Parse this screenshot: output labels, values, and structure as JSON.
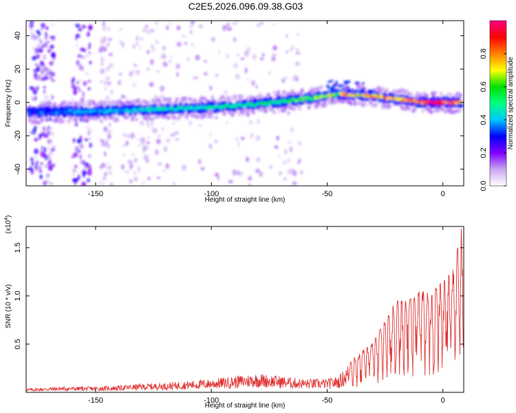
{
  "title": "C2E5.2026.096.09.38.G03",
  "chart_data": [
    {
      "type": "heatmap",
      "name": "spectrogram",
      "xlabel": "Height of straight line (km)",
      "ylabel": "Frequency (Hz)",
      "xlim": [
        -180,
        9
      ],
      "ylim": [
        -50,
        49
      ],
      "xticks": [
        -150,
        -100,
        -50,
        0
      ],
      "yticks": [
        -40,
        -20,
        0,
        20,
        40
      ],
      "colorbar": {
        "label": "Normalized spectral amplitude",
        "range": [
          0,
          1
        ],
        "ticks": [
          0.0,
          0.2,
          0.4,
          0.6,
          0.8
        ],
        "tick_labels": [
          "0.0",
          "0.2",
          "0.4",
          "0.6",
          "0.8"
        ],
        "colormap": [
          "#ffffff",
          "#c8a8f0",
          "#8000ff",
          "#0000ff",
          "#00c8ff",
          "#00ff80",
          "#00e000",
          "#ffff00",
          "#ff8000",
          "#ff0000",
          "#ff0080"
        ]
      },
      "ridge": {
        "x": [
          -177,
          -160,
          -140,
          -120,
          -100,
          -80,
          -60,
          -45,
          -30,
          -20,
          -10,
          0,
          8
        ],
        "freq": [
          -6,
          -5.5,
          -5,
          -4,
          -3,
          -1,
          2,
          5,
          4,
          2,
          0,
          0,
          0
        ],
        "amplitude": [
          0.35,
          0.4,
          0.45,
          0.5,
          0.5,
          0.55,
          0.65,
          0.75,
          0.85,
          0.9,
          0.95,
          1.0,
          0.9
        ]
      }
    },
    {
      "type": "line",
      "name": "snr",
      "xlabel": "Height of straight line (km)",
      "ylabel": "SNR (10 * v/v)",
      "y_multiplier": "(x10",
      "y_multiplier_exp": "4",
      "y_multiplier_close": ")",
      "xlim": [
        -180,
        9
      ],
      "ylim": [
        0,
        1.72
      ],
      "xticks": [
        -150,
        -100,
        -50,
        0
      ],
      "yticks": [
        0.5,
        1.0,
        1.5
      ],
      "ytick_labels": [
        "0.5",
        "1.0",
        "1.5"
      ],
      "color": "#e03030",
      "envelope": {
        "x": [
          -180,
          -165,
          -150,
          -140,
          -130,
          -120,
          -110,
          -100,
          -90,
          -80,
          -70,
          -60,
          -50,
          -45,
          -40,
          -35,
          -30,
          -25,
          -20,
          -15,
          -10,
          -5,
          0,
          5,
          8,
          9
        ],
        "y": [
          0.04,
          0.06,
          0.06,
          0.07,
          0.09,
          0.1,
          0.12,
          0.14,
          0.17,
          0.2,
          0.17,
          0.14,
          0.14,
          0.17,
          0.32,
          0.43,
          0.52,
          0.75,
          0.95,
          0.95,
          1.05,
          1.05,
          1.15,
          1.3,
          1.72,
          0.9
        ]
      }
    }
  ]
}
